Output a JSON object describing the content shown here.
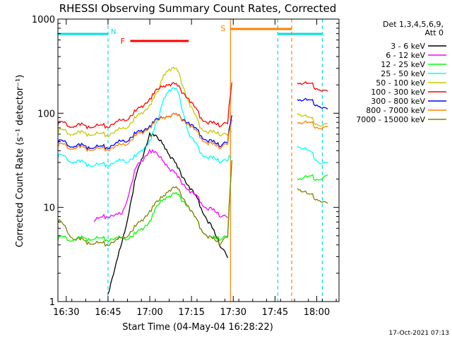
{
  "chart_data": {
    "type": "line",
    "title": "RHESSI Observing Summary Count Rates, Corrected",
    "xlabel": "Start Time (04-May-04 16:28:22)",
    "ylabel": "Corrected Count Rate (s⁻¹ detector⁻¹)",
    "footer": "17-Oct-2021 07:13",
    "yscale": "log",
    "ylim": [
      1,
      1000
    ],
    "xlim": [
      "16:27",
      "18:08"
    ],
    "xticks": [
      "16:30",
      "16:45",
      "17:00",
      "17:15",
      "17:30",
      "17:45",
      "18:00"
    ],
    "yticks": [
      "1",
      "10",
      "100",
      "1000"
    ],
    "legend_header": [
      "Det 1,3,4,5,6,9,",
      "Att 0"
    ],
    "legend_placement": "right",
    "flags": {
      "night": {
        "letter": "N",
        "color": "#00e0e0",
        "intervals": [
          [
            "16:27",
            "16:45"
          ],
          [
            "17:46",
            "18:02"
          ]
        ],
        "boundaries": [
          "16:45",
          "17:46",
          "18:02"
        ]
      },
      "flare": {
        "letter": "F",
        "color": "#ff0000",
        "intervals": [
          [
            "16:53",
            "17:14"
          ]
        ]
      },
      "saa": {
        "letter": "S",
        "color": "#ff8000",
        "intervals": [
          [
            "17:29",
            "17:51"
          ]
        ],
        "boundaries": [
          "17:29",
          "17:51"
        ]
      }
    },
    "x": [
      "16:27",
      "16:33",
      "16:40",
      "16:45",
      "16:50",
      "16:55",
      "17:00",
      "17:03",
      "17:05",
      "17:07",
      "17:10",
      "17:14",
      "17:18",
      "17:22",
      "17:25",
      "17:28",
      "17:29.5",
      "17:53",
      "17:57",
      "18:01",
      "18:04"
    ],
    "series": [
      {
        "name": "3 - 6 keV",
        "color": "#000000",
        "values": [
          null,
          null,
          null,
          null,
          null,
          null,
          null,
          null,
          null,
          null,
          null,
          null,
          null,
          null,
          null,
          null,
          null,
          null,
          null,
          null,
          null
        ]
      },
      {
        "name": "6 - 12 keV",
        "color": "#ff00ff",
        "values": [
          null,
          null,
          null,
          null,
          null,
          null,
          null,
          null,
          null,
          null,
          null,
          null,
          null,
          null,
          null,
          null,
          null,
          null,
          null,
          null,
          null
        ]
      },
      {
        "name": "12 - 25 keV",
        "color": "#00ff00",
        "values": [
          4.5,
          4.5,
          4.5,
          4.5,
          4.5,
          5,
          7,
          10,
          12,
          13,
          13,
          10,
          6,
          4.5,
          4.5,
          5,
          30,
          20,
          20,
          20,
          20
        ]
      },
      {
        "name": "25 - 50 keV",
        "color": "#00ffff",
        "values": [
          34,
          30,
          27,
          28,
          30,
          33,
          50,
          80,
          140,
          175,
          165,
          60,
          38,
          32,
          30,
          32,
          32,
          45,
          38,
          30,
          27
        ]
      },
      {
        "name": "50 - 100 keV",
        "color": "#c8c800",
        "values": [
          62,
          60,
          58,
          58,
          65,
          85,
          120,
          160,
          250,
          290,
          270,
          130,
          70,
          60,
          58,
          60,
          60,
          100,
          85,
          75,
          70
        ]
      },
      {
        "name": "100 - 300 keV",
        "color": "#ff0000",
        "values": [
          75,
          72,
          70,
          72,
          80,
          100,
          140,
          170,
          190,
          200,
          185,
          140,
          90,
          75,
          72,
          80,
          200,
          210,
          195,
          180,
          155
        ]
      },
      {
        "name": "300 - 800 keV",
        "color": "#0000ff",
        "values": [
          48,
          44,
          42,
          43,
          48,
          58,
          72,
          82,
          88,
          92,
          90,
          78,
          58,
          48,
          44,
          50,
          90,
          140,
          130,
          120,
          100
        ]
      },
      {
        "name": "800 - 7000 keV",
        "color": "#ff8000",
        "values": [
          44,
          42,
          40,
          41,
          44,
          55,
          70,
          80,
          88,
          92,
          90,
          75,
          55,
          45,
          42,
          48,
          80,
          80,
          75,
          70,
          65
        ]
      },
      {
        "name": "7000 - 15000 keV",
        "color": "#808000",
        "values": [
          7,
          4.5,
          4,
          4,
          4.5,
          6,
          9,
          11,
          13,
          15,
          15,
          10,
          6,
          4.5,
          4,
          5,
          30,
          16,
          13,
          12,
          10
        ]
      }
    ],
    "peaks": {
      "3 - 6 keV": {
        "x": [
          "16:45",
          "16:50",
          "16:55",
          "17:00",
          "17:05",
          "17:10",
          "17:15",
          "17:20",
          "17:25",
          "17:28"
        ],
        "values": [
          1.2,
          4,
          20,
          60,
          45,
          25,
          15,
          8,
          4,
          3
        ]
      },
      "6 - 12 keV": {
        "x": [
          "16:40",
          "16:45",
          "16:50",
          "16:55",
          "17:00",
          "17:05",
          "17:10",
          "17:15",
          "17:20",
          "17:25",
          "17:28"
        ],
        "values": [
          7,
          8,
          8,
          25,
          40,
          30,
          20,
          14,
          10,
          8,
          8
        ]
      }
    }
  }
}
